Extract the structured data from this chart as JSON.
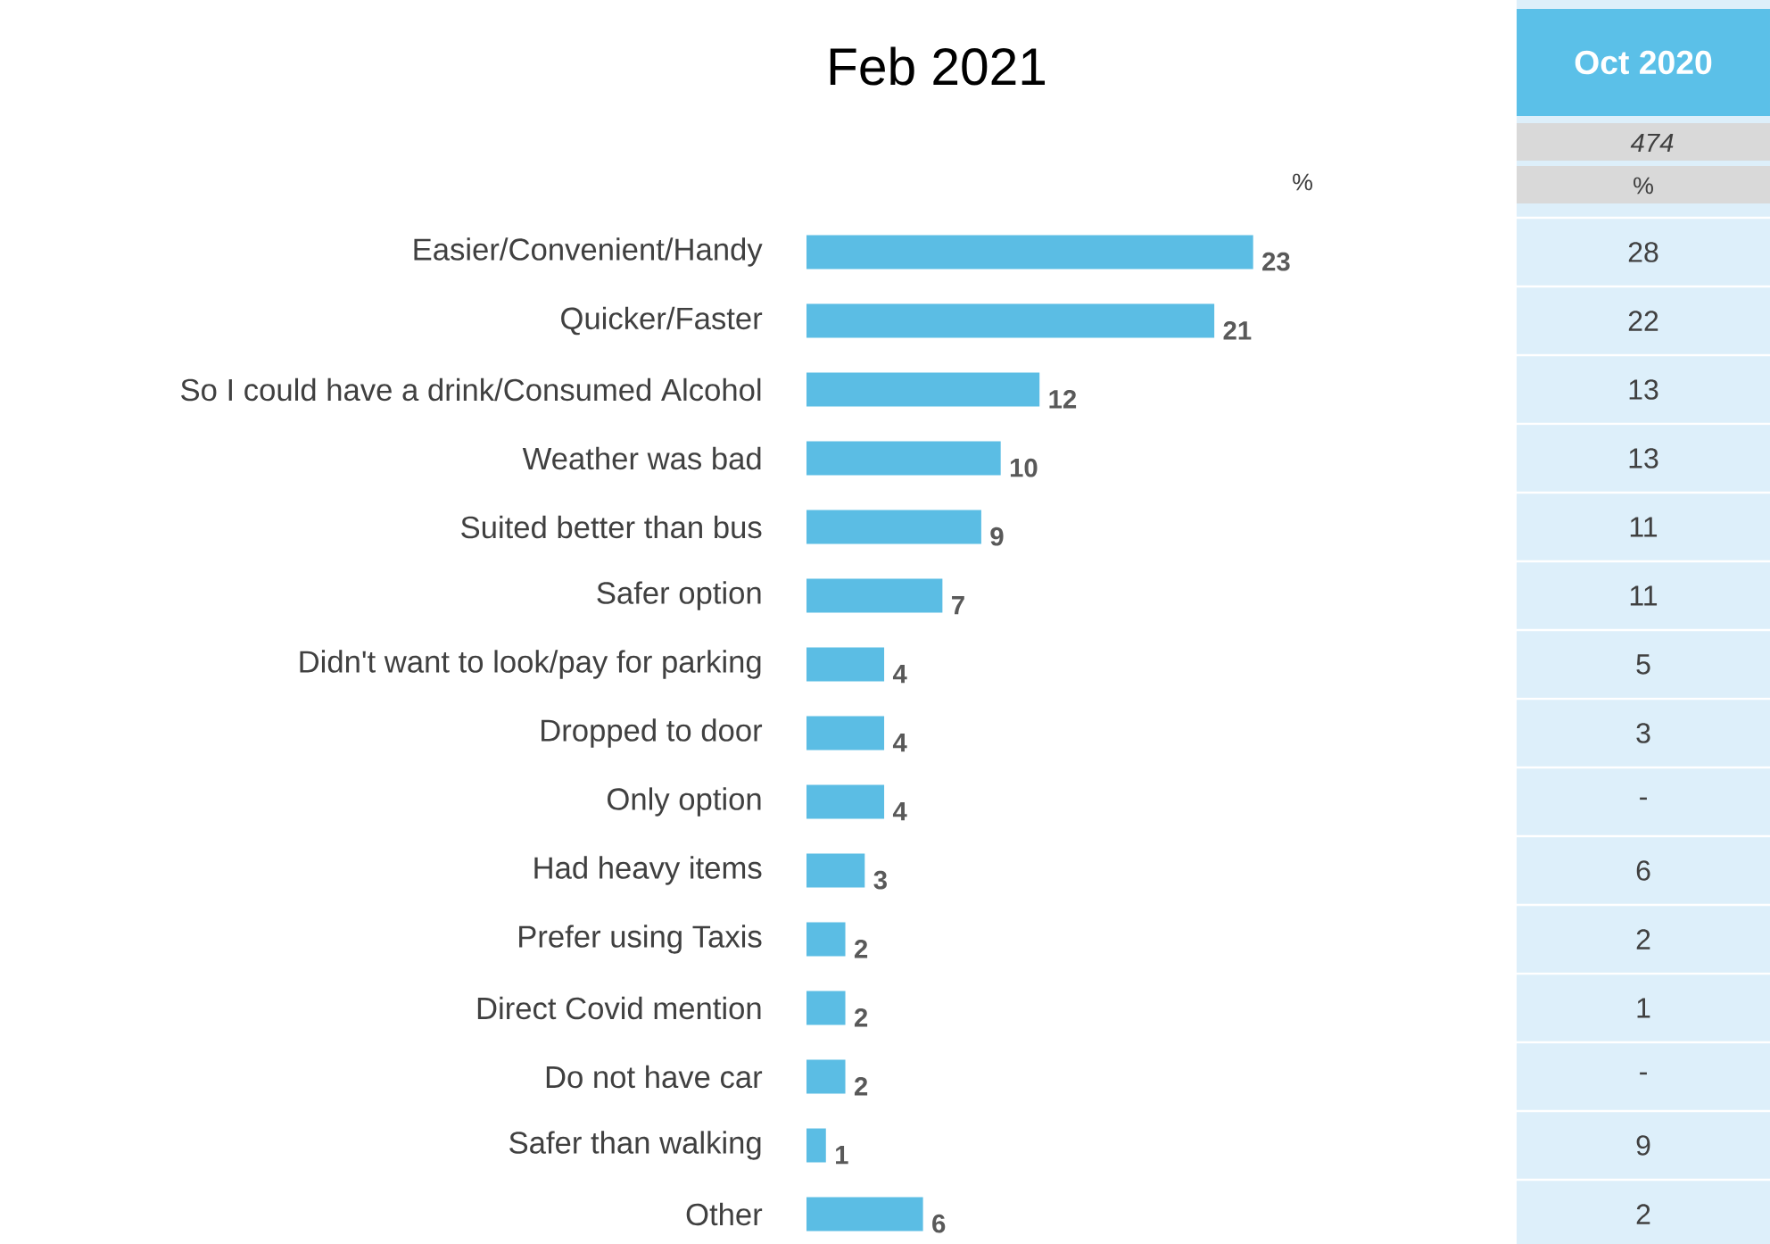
{
  "chart_data": [
    {
      "type": "bar",
      "title": "Feb 2021",
      "orientation": "horizontal",
      "color": "#5bbde4",
      "data_labels": true,
      "annotations": [
        "%"
      ],
      "categories": [
        "Easier/Convenient/Handy",
        "Quicker/Faster",
        "So I could have a drink/Consumed Alcohol",
        "Weather was bad",
        "Suited better than bus",
        "Safer option",
        "Didn't want to look/pay for parking",
        "Dropped to door",
        "Only option",
        "Had heavy items",
        "Prefer using Taxis",
        "Direct Covid mention",
        "Do not have car",
        "Safer than walking",
        "Other"
      ],
      "values": [
        23,
        21,
        12,
        10,
        9,
        7,
        4,
        4,
        4,
        3,
        2,
        2,
        2,
        1,
        6
      ]
    },
    {
      "type": "other",
      "title": "Oct 2020",
      "subtitle": "474",
      "annotations": [
        "%"
      ],
      "values": [
        28,
        22,
        13,
        13,
        11,
        11,
        5,
        3,
        null,
        6,
        2,
        1,
        null,
        9,
        2
      ],
      "value_labels": [
        "28",
        "22",
        "13",
        "13",
        "11",
        "11",
        "5",
        "3",
        "-",
        "6",
        "2",
        "1",
        "-",
        "9",
        "2"
      ]
    }
  ]
}
